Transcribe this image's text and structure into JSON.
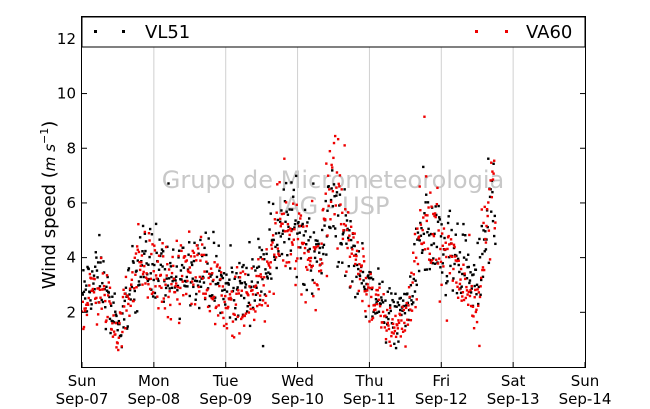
{
  "chart_data": {
    "type": "scatter",
    "title": "",
    "ylabel": "Wind speed (m s⁻¹)",
    "ylabel_main": "Wind speed (",
    "ylabel_unit": "m s",
    "ylabel_exp": "−1",
    "ylabel_close": ")",
    "xlabel": "",
    "ylim": [
      0,
      12.8
    ],
    "yticks": [
      2,
      4,
      6,
      8,
      10,
      12
    ],
    "xlim": [
      0,
      7
    ],
    "xticks": [
      {
        "day": "Sun",
        "date": "Sep-07"
      },
      {
        "day": "Mon",
        "date": "Sep-08"
      },
      {
        "day": "Tue",
        "date": "Sep-09"
      },
      {
        "day": "Wed",
        "date": "Sep-10"
      },
      {
        "day": "Thu",
        "date": "Sep-11"
      },
      {
        "day": "Fri",
        "date": "Sep-12"
      },
      {
        "day": "Sat",
        "date": "Sep-13"
      },
      {
        "day": "Sun",
        "date": "Sep-14"
      }
    ],
    "grid": "vertical",
    "legend_placement": "top",
    "data_extent_days": 5.75,
    "series": [
      {
        "name": "VL51",
        "color": "#000000",
        "x": [
          0,
          0.25,
          0.5,
          0.75,
          1,
          1.25,
          1.5,
          1.75,
          2,
          2.25,
          2.5,
          2.75,
          3,
          3.25,
          3.5,
          3.75,
          4,
          4.25,
          4.5,
          4.75,
          5,
          5.25,
          5.5,
          5.75
        ],
        "values": [
          2.6,
          3.4,
          1.2,
          3.6,
          4.0,
          3.0,
          3.8,
          3.6,
          2.8,
          2.9,
          3.6,
          5.0,
          5.3,
          3.8,
          6.0,
          4.2,
          2.9,
          1.9,
          2.0,
          5.0,
          4.2,
          3.6,
          3.0,
          6.5
        ]
      },
      {
        "name": "VA60",
        "color": "#ee0000",
        "x": [
          0,
          0.25,
          0.5,
          0.75,
          1,
          1.25,
          1.5,
          1.75,
          2,
          2.25,
          2.5,
          2.75,
          3,
          3.25,
          3.5,
          3.75,
          4,
          4.25,
          4.5,
          4.75,
          5,
          5.25,
          5.5,
          5.75
        ],
        "values": [
          2.2,
          3.0,
          1.1,
          3.9,
          3.5,
          2.8,
          3.6,
          3.3,
          2.4,
          2.3,
          2.8,
          5.0,
          5.0,
          3.4,
          7.0,
          4.5,
          2.7,
          1.5,
          1.7,
          5.5,
          4.4,
          3.3,
          2.4,
          7.4
        ]
      }
    ],
    "watermark": [
      "Grupo de Micrometeorologia",
      "IAG - USP"
    ]
  }
}
